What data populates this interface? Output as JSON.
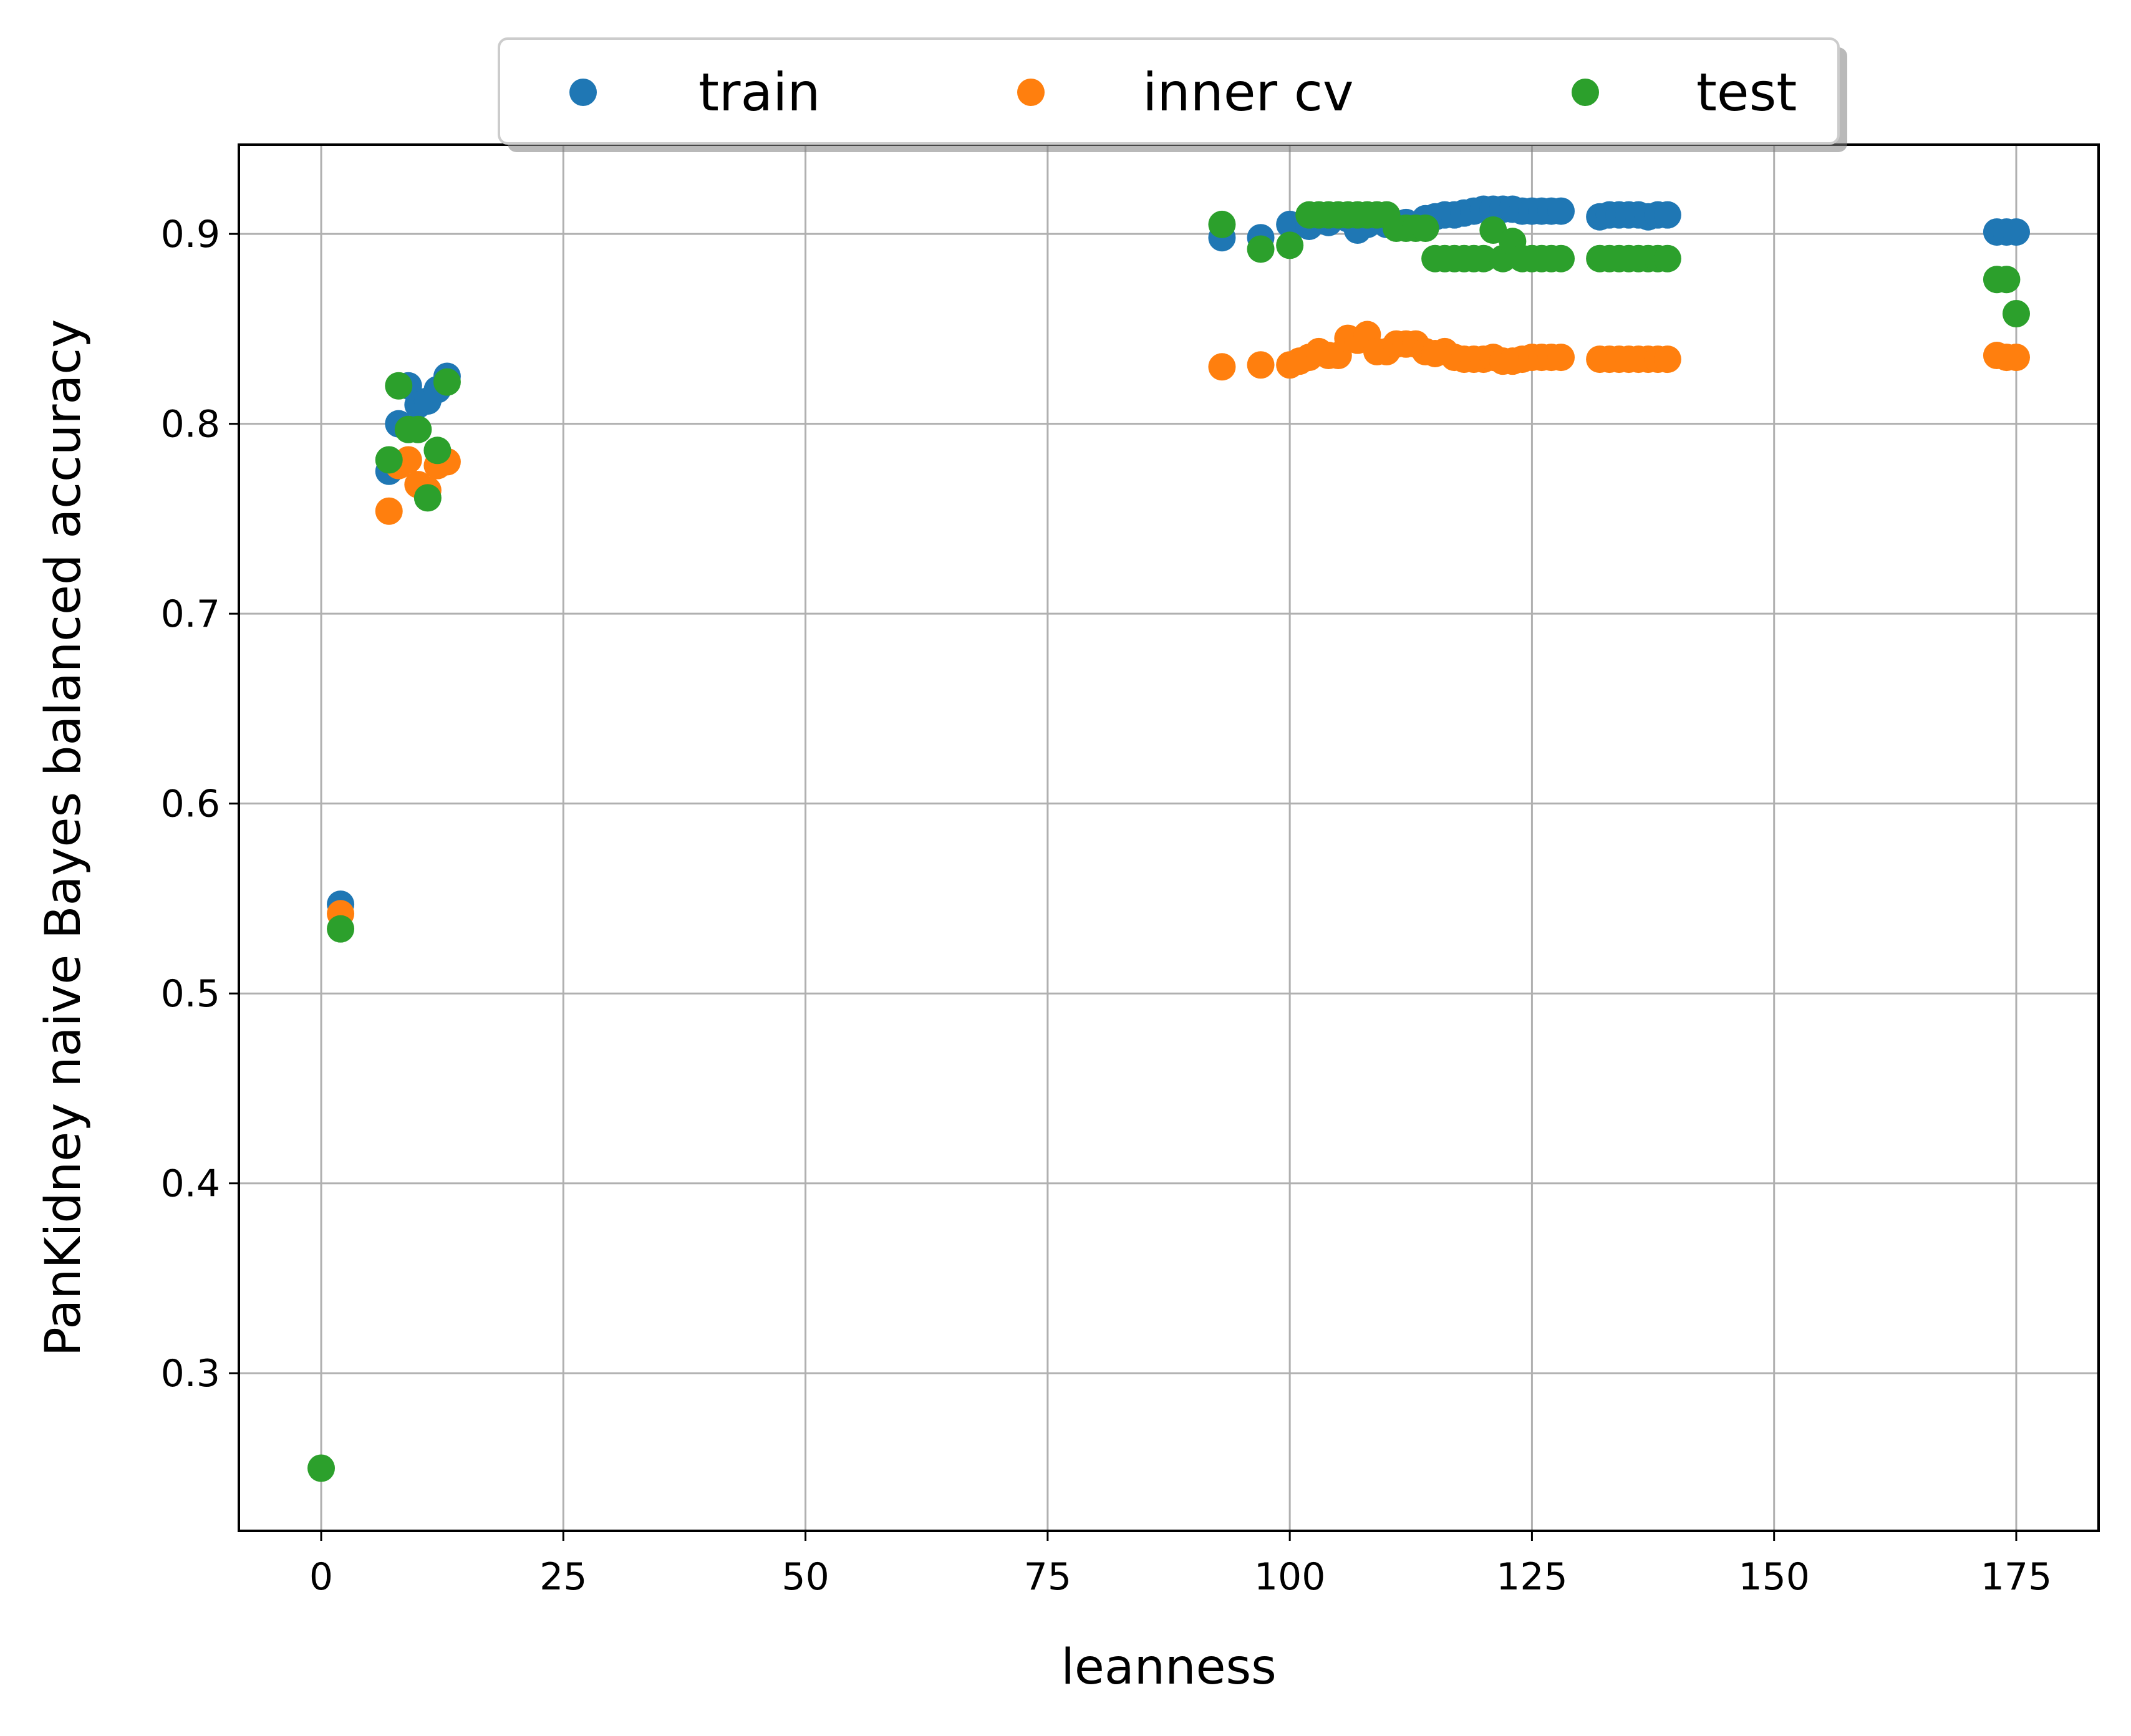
{
  "chart_data": {
    "type": "scatter",
    "xlabel": "leanness",
    "ylabel": "PanKidney naive Bayes balanced accuracy",
    "xlim": [
      -8.5,
      183.5
    ],
    "ylim": [
      0.217,
      0.947
    ],
    "xticks": [
      0,
      25,
      50,
      75,
      100,
      125,
      150,
      175
    ],
    "yticks": [
      0.3,
      0.4,
      0.5,
      0.6,
      0.7,
      0.8,
      0.9
    ],
    "grid": true,
    "legend": {
      "placement": "top-center (above axes)",
      "columns": 3,
      "shadow": true
    },
    "series": [
      {
        "name": "train",
        "color": "#1f77b4",
        "x": [
          2,
          7,
          8,
          9,
          10,
          11,
          12,
          13,
          93,
          97,
          100,
          102,
          104,
          106,
          107,
          108,
          110,
          112,
          114,
          115,
          116,
          117,
          118,
          119,
          120,
          121,
          122,
          123,
          124,
          125,
          126,
          127,
          128,
          132,
          133,
          134,
          135,
          136,
          137,
          138,
          139,
          173,
          174,
          175
        ],
        "y": [
          0.547,
          0.775,
          0.8,
          0.82,
          0.81,
          0.812,
          0.818,
          0.825,
          0.898,
          0.898,
          0.905,
          0.904,
          0.906,
          0.908,
          0.902,
          0.905,
          0.905,
          0.906,
          0.908,
          0.909,
          0.91,
          0.91,
          0.911,
          0.912,
          0.913,
          0.913,
          0.913,
          0.913,
          0.912,
          0.912,
          0.912,
          0.912,
          0.912,
          0.909,
          0.91,
          0.91,
          0.91,
          0.91,
          0.909,
          0.91,
          0.91,
          0.901,
          0.901,
          0.901
        ]
      },
      {
        "name": "inner cv",
        "color": "#ff7f0e",
        "x": [
          2,
          7,
          8,
          9,
          10,
          11,
          12,
          13,
          93,
          97,
          100,
          101,
          102,
          103,
          104,
          105,
          106,
          107,
          108,
          109,
          110,
          111,
          112,
          113,
          114,
          115,
          116,
          117,
          118,
          119,
          120,
          121,
          122,
          123,
          124,
          125,
          126,
          127,
          128,
          132,
          133,
          134,
          135,
          136,
          137,
          138,
          139,
          173,
          174,
          175
        ],
        "y": [
          0.542,
          0.754,
          0.778,
          0.781,
          0.768,
          0.765,
          0.778,
          0.78,
          0.83,
          0.831,
          0.831,
          0.833,
          0.835,
          0.838,
          0.836,
          0.836,
          0.845,
          0.844,
          0.847,
          0.838,
          0.838,
          0.842,
          0.842,
          0.842,
          0.838,
          0.837,
          0.838,
          0.835,
          0.834,
          0.834,
          0.834,
          0.835,
          0.833,
          0.833,
          0.834,
          0.835,
          0.835,
          0.835,
          0.835,
          0.834,
          0.834,
          0.834,
          0.834,
          0.834,
          0.834,
          0.834,
          0.834,
          0.836,
          0.835,
          0.835
        ]
      },
      {
        "name": "test",
        "color": "#2ca02c",
        "x": [
          0,
          2,
          7,
          8,
          9,
          10,
          11,
          12,
          13,
          93,
          97,
          100,
          102,
          103,
          104,
          105,
          106,
          107,
          108,
          109,
          110,
          111,
          112,
          113,
          114,
          115,
          116,
          117,
          118,
          119,
          120,
          121,
          122,
          123,
          124,
          125,
          126,
          127,
          128,
          132,
          133,
          134,
          135,
          136,
          137,
          138,
          139,
          173,
          174,
          175
        ],
        "y": [
          0.25,
          0.534,
          0.781,
          0.82,
          0.797,
          0.797,
          0.761,
          0.786,
          0.822,
          0.905,
          0.892,
          0.894,
          0.91,
          0.91,
          0.91,
          0.91,
          0.91,
          0.91,
          0.91,
          0.91,
          0.91,
          0.903,
          0.903,
          0.903,
          0.903,
          0.887,
          0.887,
          0.887,
          0.887,
          0.887,
          0.887,
          0.902,
          0.887,
          0.896,
          0.887,
          0.887,
          0.887,
          0.887,
          0.887,
          0.887,
          0.887,
          0.887,
          0.887,
          0.887,
          0.887,
          0.887,
          0.887,
          0.876,
          0.876,
          0.858
        ]
      }
    ]
  }
}
